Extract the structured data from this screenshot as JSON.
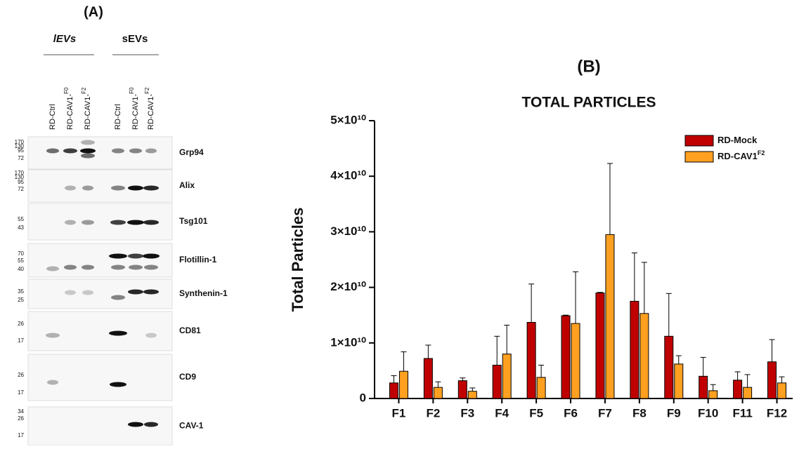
{
  "panel_a": {
    "label": "(A)",
    "groups": [
      "lEVs",
      "sEVs"
    ],
    "lanes": [
      {
        "text": "RD-Ctrl"
      },
      {
        "text": "RD-CAV1-",
        "sup": "F0"
      },
      {
        "text": "RD-CAV1-",
        "sup": "F2"
      },
      {
        "text": "RD-Ctrl"
      },
      {
        "text": "RD-CAV1-",
        "sup": "F0"
      },
      {
        "text": "RD-CAV1-",
        "sup": "F2"
      }
    ],
    "blots": [
      {
        "name": "Grp94",
        "markers": [
          "170",
          "130",
          "95",
          "72"
        ]
      },
      {
        "name": "Alix",
        "markers": [
          "170",
          "130",
          "95",
          "72"
        ]
      },
      {
        "name": "Tsg101",
        "markers": [
          "55",
          "43"
        ]
      },
      {
        "name": "Flotillin-1",
        "markers": [
          "70",
          "55",
          "40"
        ]
      },
      {
        "name": "Synthenin-1",
        "markers": [
          "35",
          "25"
        ]
      },
      {
        "name": "CD81",
        "markers": [
          "26",
          "17"
        ]
      },
      {
        "name": "CD9",
        "markers": [
          "26",
          "17"
        ]
      },
      {
        "name": "CAV-1",
        "markers": [
          "34",
          "26",
          "17"
        ]
      }
    ]
  },
  "chart_data": {
    "type": "bar",
    "label": "(B)",
    "title": "TOTAL PARTICLES",
    "y_label": "Total Particles",
    "categories": [
      "F1",
      "F2",
      "F3",
      "F4",
      "F5",
      "F6",
      "F7",
      "F8",
      "F9",
      "F10",
      "F11",
      "F12"
    ],
    "series": [
      {
        "name": "RD-Mock",
        "color": "#c00000",
        "values": [
          2800000000,
          7200000000,
          3200000000,
          6000000000,
          13700000000,
          14900000000,
          19000000000,
          17500000000,
          11200000000,
          4000000000,
          3300000000,
          6600000000
        ],
        "errors": [
          1300000000,
          2400000000,
          500000000,
          5200000000,
          6900000000,
          100000000,
          100000000,
          8700000000,
          7700000000,
          3400000000,
          1500000000,
          4000000000
        ]
      },
      {
        "name": "RD-CAV1",
        "name_sup": "F2",
        "color": "#ffa020",
        "values": [
          4900000000,
          2000000000,
          1300000000,
          8000000000,
          3800000000,
          13500000000,
          29500000000,
          15300000000,
          6200000000,
          1400000000,
          2000000000,
          2800000000
        ],
        "errors": [
          3500000000,
          1000000000,
          600000000,
          5200000000,
          2200000000,
          9300000000,
          12800000000,
          9200000000,
          1500000000,
          1100000000,
          2300000000,
          1100000000
        ]
      }
    ],
    "ylim": [
      0,
      50000000000
    ],
    "yticks": [
      0,
      {
        "value": 10000000000,
        "label": "1×10¹⁰"
      },
      {
        "value": 20000000000,
        "label": "2×10¹⁰"
      },
      {
        "value": 30000000000,
        "label": "3×10¹⁰"
      },
      {
        "value": 40000000000,
        "label": "4×10¹⁰"
      },
      {
        "value": 50000000000,
        "label": "5×10¹⁰"
      }
    ],
    "legend": "upper right"
  }
}
